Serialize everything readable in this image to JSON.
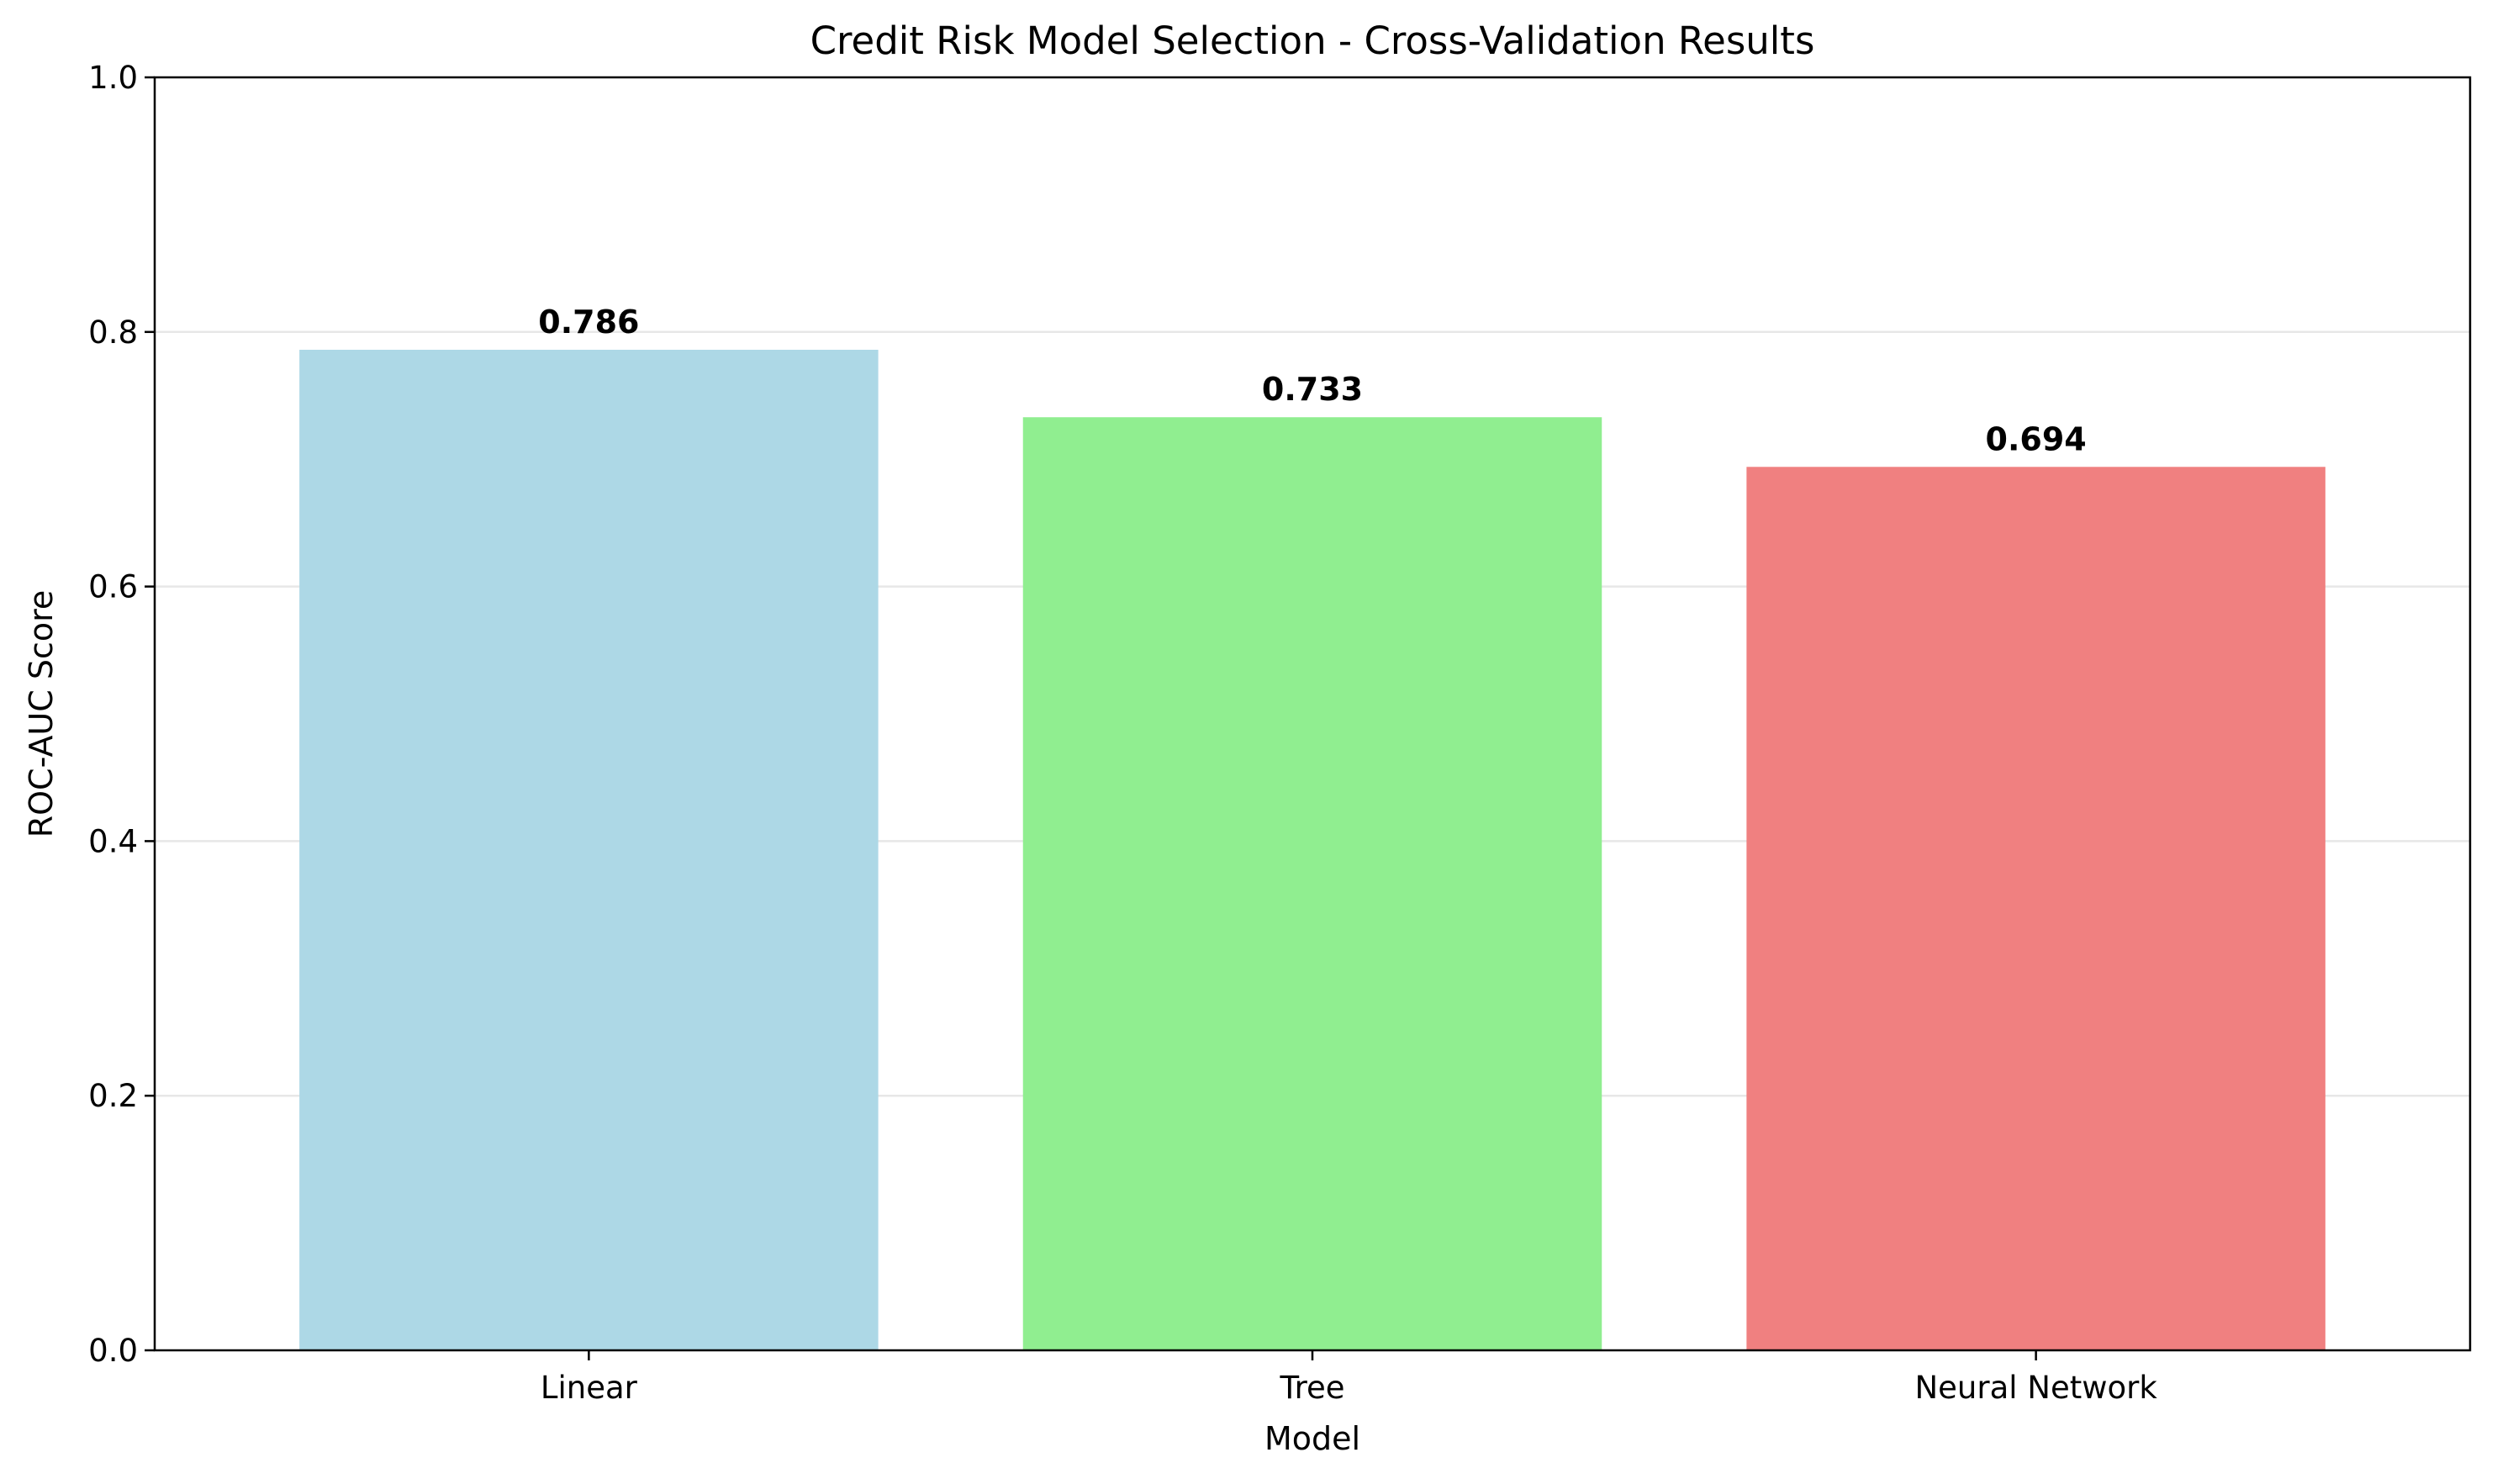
{
  "chart_data": {
    "type": "bar",
    "title": "Credit Risk Model Selection - Cross-Validation Results",
    "xlabel": "Model",
    "ylabel": "ROC-AUC Score",
    "categories": [
      "Linear",
      "Tree",
      "Neural Network"
    ],
    "values": [
      0.786,
      0.733,
      0.694
    ],
    "value_labels": [
      "0.786",
      "0.733",
      "0.694"
    ],
    "colors": [
      "#add8e6",
      "#90ee90",
      "#f08080"
    ],
    "ylim": [
      0,
      1.0
    ],
    "yticks": [
      0.0,
      0.2,
      0.4,
      0.6,
      0.8,
      1.0
    ],
    "ytick_labels": [
      "0.0",
      "0.2",
      "0.4",
      "0.6",
      "0.8",
      "1.0"
    ],
    "grid": "y",
    "legend": "none"
  }
}
